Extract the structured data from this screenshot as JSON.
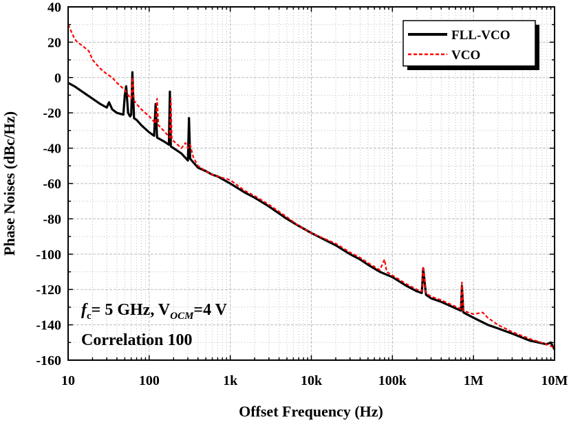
{
  "chart_data": {
    "type": "line",
    "xlabel": "Offset Frequency (Hz)",
    "ylabel": "Phase Noises (dBc/Hz)",
    "xscale": "log",
    "xlim": [
      10,
      10000000
    ],
    "ylim": [
      -160,
      40
    ],
    "grid": true,
    "x_tick_values": [
      10,
      100,
      1000,
      10000,
      100000,
      1000000,
      10000000
    ],
    "x_tick_labels": [
      "10",
      "100",
      "1k",
      "10k",
      "100k",
      "1M",
      "10M"
    ],
    "y_tick_values": [
      40,
      20,
      0,
      -20,
      -40,
      -60,
      -80,
      -100,
      -120,
      -140,
      -160
    ],
    "y_tick_labels": [
      "40",
      "20",
      "0",
      "-20",
      "-40",
      "-60",
      "-80",
      "-100",
      "-120",
      "-140",
      "-160"
    ],
    "legend_position": "top-right",
    "series": [
      {
        "name": "FLL-VCO",
        "color": "#000000",
        "line_style": "solid",
        "x": [
          10,
          12,
          15,
          20,
          25,
          30,
          32,
          35,
          40,
          48,
          50,
          52,
          55,
          58,
          60,
          62,
          65,
          70,
          80,
          100,
          115,
          120,
          125,
          150,
          175,
          180,
          185,
          200,
          250,
          300,
          310,
          320,
          350,
          400,
          500,
          600,
          700,
          1000,
          1500,
          2000,
          3000,
          5000,
          7000,
          10000,
          20000,
          30000,
          40000,
          50000,
          70000,
          100000,
          150000,
          200000,
          230000,
          240000,
          260000,
          300000,
          400000,
          500000,
          700000,
          720000,
          750000,
          1000000,
          1500000,
          2000000,
          3000000,
          5000000,
          8000000,
          9000000,
          10000000
        ],
        "y": [
          -3,
          -5,
          -8,
          -12,
          -15,
          -17,
          -14,
          -18,
          -20,
          -21,
          -10,
          -5,
          -20,
          -22,
          -21,
          3,
          -23,
          -24,
          -27,
          -31,
          -33,
          -15,
          -34,
          -36,
          -38,
          -8,
          -39,
          -40,
          -43,
          -47,
          -23,
          -46,
          -48,
          -51,
          -53,
          -55,
          -56,
          -60,
          -65,
          -68,
          -73,
          -80,
          -84,
          -88,
          -95,
          -100,
          -103,
          -106,
          -110,
          -113,
          -118,
          -121,
          -122,
          -108,
          -123,
          -125,
          -127,
          -129,
          -132,
          -118,
          -133,
          -136,
          -140,
          -142,
          -145,
          -149,
          -151,
          -150,
          -154
        ]
      },
      {
        "name": "VCO",
        "color": "#ff0000",
        "line_style": "dashed",
        "x": [
          10,
          12,
          13,
          15,
          18,
          20,
          25,
          30,
          35,
          40,
          50,
          55,
          60,
          62,
          65,
          70,
          80,
          100,
          120,
          125,
          130,
          150,
          180,
          185,
          190,
          200,
          250,
          280,
          300,
          320,
          350,
          400,
          500,
          600,
          700,
          1000,
          1500,
          2000,
          3000,
          5000,
          7000,
          10000,
          20000,
          30000,
          40000,
          50000,
          70000,
          80000,
          85000,
          100000,
          150000,
          200000,
          230000,
          240000,
          260000,
          300000,
          400000,
          500000,
          700000,
          720000,
          750000,
          1000000,
          1300000,
          1500000,
          2000000,
          3000000,
          5000000,
          8000000,
          10000000
        ],
        "y": [
          30,
          22,
          20,
          18,
          15,
          10,
          5,
          2,
          0,
          -3,
          -7,
          -10,
          -12,
          0,
          -13,
          -15,
          -18,
          -22,
          -26,
          -12,
          -27,
          -30,
          -34,
          -12,
          -35,
          -36,
          -40,
          -37,
          -40,
          -38,
          -45,
          -50,
          -53,
          -55,
          -56,
          -58,
          -64,
          -67,
          -72,
          -79,
          -84,
          -88,
          -94,
          -99,
          -102,
          -105,
          -109,
          -103,
          -110,
          -112,
          -117,
          -120,
          -121,
          -107,
          -122,
          -124,
          -126,
          -128,
          -131,
          -116,
          -132,
          -134,
          -133,
          -136,
          -140,
          -144,
          -148,
          -151,
          -153
        ]
      }
    ],
    "annotations": {
      "line1_prefix": "f",
      "line1_sub": "c",
      "line1_mid": "= 5 GHz, V",
      "line1_sub2": "OCM",
      "line1_suffix": "=4 V",
      "line2": "Correlation 100"
    }
  }
}
